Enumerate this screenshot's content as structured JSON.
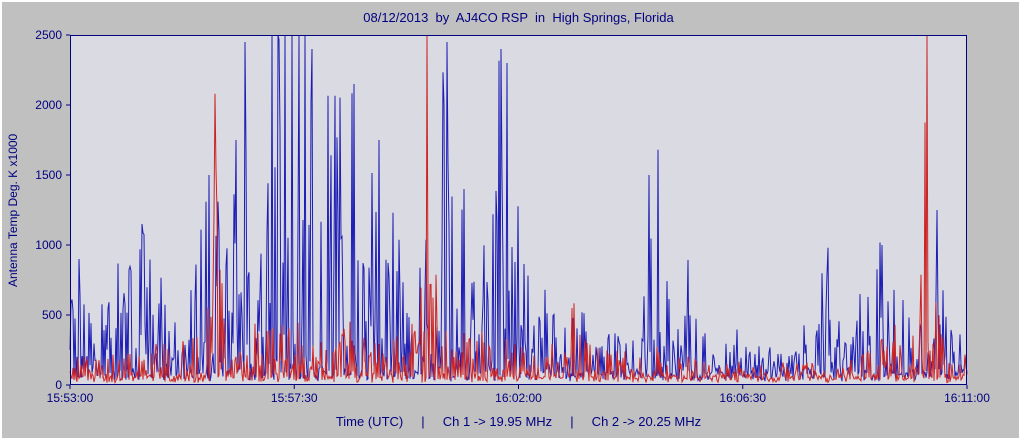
{
  "window": {
    "bg": "#c0c0c0",
    "plot_bg": "#dadae2",
    "accent": "#000080",
    "border": "#ffffff"
  },
  "chart_data": {
    "type": "line",
    "title": "08/12/2013  by  AJ4CO RSP  in  High Springs, Florida",
    "ylabel": "Antenna Temp Deg. K x1000",
    "xlabel": "Time (UTC)     |     Ch 1 -> 19.95 MHz     |     Ch 2 -> 20.25 MHz",
    "x_range": [
      "15:53:00",
      "16:11:00"
    ],
    "x_ticks": [
      "15:53:00",
      "15:57:30",
      "16:02:00",
      "16:06:30",
      "16:11:00"
    ],
    "y_ticks": [
      0,
      500,
      1000,
      1500,
      2000,
      2500
    ],
    "ylim": [
      0,
      2500
    ],
    "grid": false,
    "legend": "none",
    "series": [
      {
        "name": "Ch 1 -> 19.95 MHz",
        "color": "#1e1eb4",
        "baseline": 60,
        "envelope": [
          [
            0.0,
            500
          ],
          [
            0.01,
            900
          ],
          [
            0.02,
            450
          ],
          [
            0.035,
            650
          ],
          [
            0.05,
            800
          ],
          [
            0.065,
            1000
          ],
          [
            0.08,
            1150
          ],
          [
            0.095,
            800
          ],
          [
            0.11,
            650
          ],
          [
            0.125,
            600
          ],
          [
            0.14,
            950
          ],
          [
            0.155,
            1500
          ],
          [
            0.17,
            1100
          ],
          [
            0.185,
            1750
          ],
          [
            0.195,
            2450
          ],
          [
            0.205,
            1600
          ],
          [
            0.215,
            1900
          ],
          [
            0.225,
            2500
          ],
          [
            0.24,
            2500
          ],
          [
            0.255,
            2500
          ],
          [
            0.27,
            2400
          ],
          [
            0.285,
            2200
          ],
          [
            0.3,
            2000
          ],
          [
            0.317,
            2150
          ],
          [
            0.33,
            1500
          ],
          [
            0.345,
            1750
          ],
          [
            0.36,
            1300
          ],
          [
            0.375,
            1200
          ],
          [
            0.39,
            1400
          ],
          [
            0.405,
            1800
          ],
          [
            0.42,
            2450
          ],
          [
            0.435,
            1400
          ],
          [
            0.45,
            1250
          ],
          [
            0.465,
            1150
          ],
          [
            0.48,
            2400
          ],
          [
            0.495,
            1300
          ],
          [
            0.51,
            1000
          ],
          [
            0.525,
            650
          ],
          [
            0.54,
            480
          ],
          [
            0.555,
            420
          ],
          [
            0.57,
            520
          ],
          [
            0.585,
            380
          ],
          [
            0.6,
            330
          ],
          [
            0.615,
            300
          ],
          [
            0.63,
            420
          ],
          [
            0.645,
            1500
          ],
          [
            0.655,
            1680
          ],
          [
            0.665,
            900
          ],
          [
            0.68,
            1000
          ],
          [
            0.695,
            700
          ],
          [
            0.71,
            300
          ],
          [
            0.725,
            250
          ],
          [
            0.74,
            520
          ],
          [
            0.755,
            230
          ],
          [
            0.77,
            200
          ],
          [
            0.785,
            320
          ],
          [
            0.8,
            260
          ],
          [
            0.815,
            380
          ],
          [
            0.83,
            500
          ],
          [
            0.845,
            980
          ],
          [
            0.86,
            420
          ],
          [
            0.875,
            560
          ],
          [
            0.89,
            820
          ],
          [
            0.905,
            1000
          ],
          [
            0.92,
            600
          ],
          [
            0.935,
            480
          ],
          [
            0.95,
            450
          ],
          [
            0.967,
            1250
          ],
          [
            0.98,
            420
          ],
          [
            1.0,
            300
          ]
        ],
        "spikes": [
          [
            0.01,
            900
          ],
          [
            0.08,
            1150
          ],
          [
            0.155,
            1500
          ],
          [
            0.185,
            1750
          ],
          [
            0.195,
            2450
          ],
          [
            0.225,
            2500
          ],
          [
            0.232,
            2500
          ],
          [
            0.24,
            2500
          ],
          [
            0.248,
            2500
          ],
          [
            0.255,
            2500
          ],
          [
            0.262,
            2500
          ],
          [
            0.27,
            2400
          ],
          [
            0.317,
            2150
          ],
          [
            0.345,
            1750
          ],
          [
            0.42,
            2450
          ],
          [
            0.48,
            2400
          ],
          [
            0.487,
            2300
          ],
          [
            0.645,
            1500
          ],
          [
            0.655,
            1680
          ],
          [
            0.845,
            980
          ],
          [
            0.905,
            1000
          ],
          [
            0.967,
            1250
          ]
        ]
      },
      {
        "name": "Ch 2 -> 20.25 MHz",
        "color": "#cc2424",
        "baseline": 40,
        "envelope": [
          [
            0.0,
            140
          ],
          [
            0.05,
            200
          ],
          [
            0.1,
            280
          ],
          [
            0.14,
            360
          ],
          [
            0.158,
            900
          ],
          [
            0.162,
            2080
          ],
          [
            0.166,
            900
          ],
          [
            0.18,
            380
          ],
          [
            0.2,
            430
          ],
          [
            0.22,
            420
          ],
          [
            0.24,
            400
          ],
          [
            0.26,
            430
          ],
          [
            0.28,
            360
          ],
          [
            0.3,
            330
          ],
          [
            0.32,
            430
          ],
          [
            0.34,
            330
          ],
          [
            0.36,
            300
          ],
          [
            0.38,
            330
          ],
          [
            0.393,
            900
          ],
          [
            0.398,
            2500
          ],
          [
            0.403,
            900
          ],
          [
            0.42,
            380
          ],
          [
            0.44,
            420
          ],
          [
            0.46,
            330
          ],
          [
            0.48,
            300
          ],
          [
            0.5,
            260
          ],
          [
            0.52,
            280
          ],
          [
            0.54,
            260
          ],
          [
            0.56,
            560
          ],
          [
            0.58,
            300
          ],
          [
            0.6,
            280
          ],
          [
            0.62,
            240
          ],
          [
            0.64,
            260
          ],
          [
            0.66,
            300
          ],
          [
            0.68,
            260
          ],
          [
            0.7,
            180
          ],
          [
            0.72,
            140
          ],
          [
            0.74,
            130
          ],
          [
            0.76,
            120
          ],
          [
            0.78,
            120
          ],
          [
            0.8,
            130
          ],
          [
            0.82,
            140
          ],
          [
            0.84,
            160
          ],
          [
            0.86,
            150
          ],
          [
            0.88,
            180
          ],
          [
            0.9,
            260
          ],
          [
            0.92,
            420
          ],
          [
            0.94,
            430
          ],
          [
            0.95,
            900
          ],
          [
            0.955,
            2500
          ],
          [
            0.96,
            700
          ],
          [
            0.975,
            300
          ],
          [
            1.0,
            160
          ]
        ],
        "spikes": [
          [
            0.162,
            2080
          ],
          [
            0.398,
            2500
          ],
          [
            0.56,
            550
          ],
          [
            0.92,
            430
          ],
          [
            0.955,
            2500
          ]
        ]
      }
    ]
  }
}
